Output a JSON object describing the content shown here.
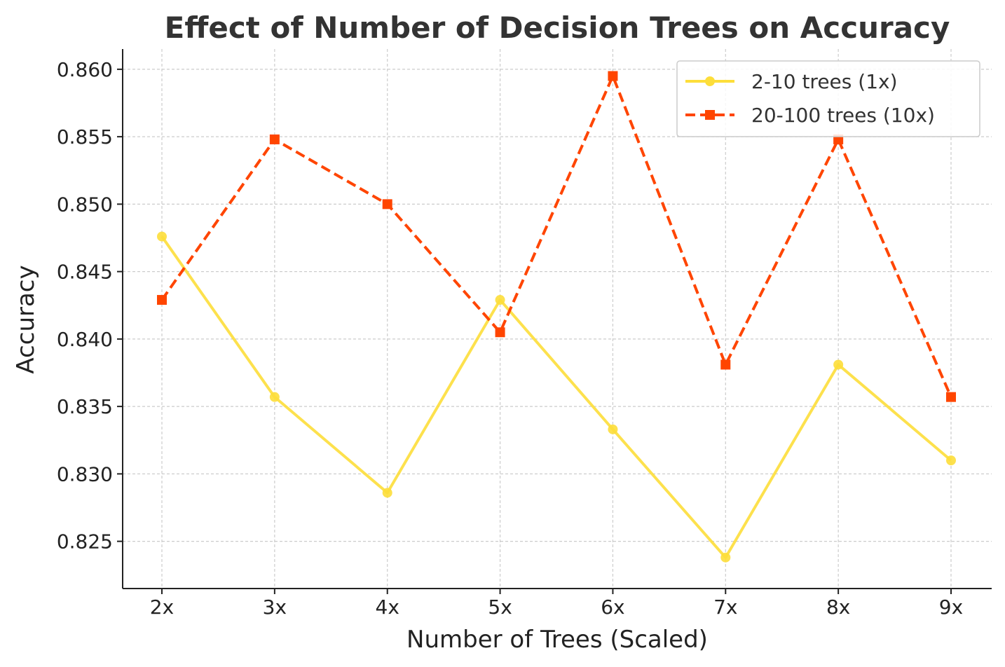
{
  "chart_data": {
    "type": "line",
    "title": "Effect of Number of Decision Trees on Accuracy",
    "xlabel": "Number of Trees (Scaled)",
    "ylabel": "Accuracy",
    "categories": [
      "2x",
      "3x",
      "4x",
      "5x",
      "6x",
      "7x",
      "8x",
      "9x"
    ],
    "ylim": [
      0.8215,
      0.8615
    ],
    "yticks": [
      "0.825",
      "0.830",
      "0.835",
      "0.840",
      "0.845",
      "0.850",
      "0.855",
      "0.860"
    ],
    "grid": true,
    "legend_position": "top-right",
    "series": [
      {
        "name": "2-10 trees (1x)",
        "color": "#FDDE3A",
        "line_style": "solid",
        "marker": "circle",
        "values": [
          0.8476,
          0.8357,
          0.8286,
          0.8429,
          0.8333,
          0.8238,
          0.8381,
          0.831
        ]
      },
      {
        "name": "20-100 trees (10x)",
        "color": "#FF4500",
        "line_style": "dashed",
        "marker": "square",
        "values": [
          0.8429,
          0.8548,
          0.85,
          0.8405,
          0.8595,
          0.8381,
          0.8548,
          0.8357
        ]
      }
    ]
  }
}
